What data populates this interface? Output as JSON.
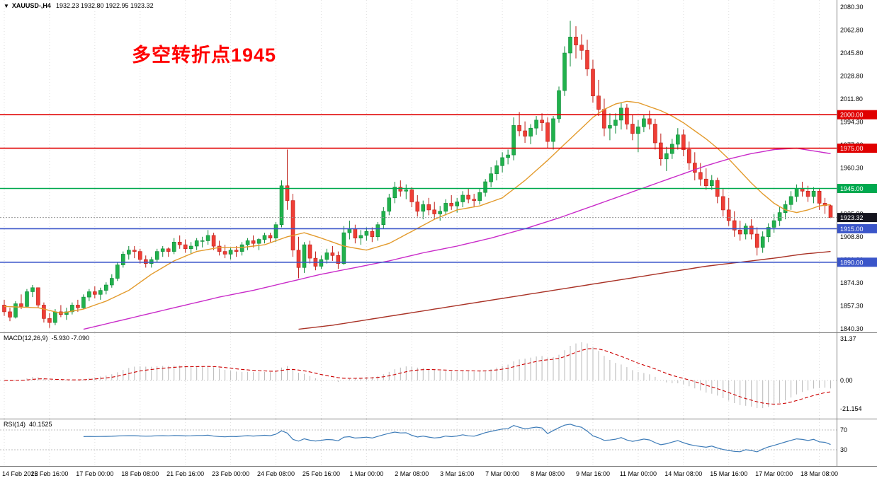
{
  "header": {
    "collapse_icon": "▼",
    "symbol_period": "XAUUSD-,H4",
    "ohlc": "1932.23 1932.80 1922.95 1923.32"
  },
  "annotation": {
    "text": "多空转折点1945",
    "color": "#FF0000"
  },
  "colors": {
    "background": "#FFFFFF",
    "up": "#21B14C",
    "up_stroke": "#0E8A39",
    "down": "#EF3E36",
    "down_stroke": "#BE1E17",
    "ma_fast": "#E39B2D",
    "ma_mid": "#C92BC9",
    "ma_slow": "#A93226",
    "macd_hist": "#B8B8B8",
    "macd_signal": "#CC0000",
    "rsi_line": "#3E7CB8",
    "grid": "#DEDEDE",
    "axis_text": "#000000",
    "separator": "#808080",
    "bid_line": "#999999",
    "bid_badge": "#15151F"
  },
  "chart_data": {
    "type": "candlestick",
    "symbol": "XAUUSD-",
    "timeframe": "H4",
    "title": "XAUUSD-,H4",
    "ohlc_display": [
      1932.23,
      1932.8,
      1922.95,
      1923.32
    ],
    "y_axis": {
      "min": 1840.3,
      "max": 2080.3,
      "labels": [
        "2080.30",
        "2062.80",
        "2045.80",
        "2028.80",
        "2011.80",
        "1994.30",
        "1977.30",
        "1960.30",
        "1943.30",
        "1925.80",
        "1908.80",
        "1891.30",
        "1874.30",
        "1857.30",
        "1840.30"
      ]
    },
    "x_label_step": 8,
    "x_labels": [
      "14 Feb 2022",
      "15 Feb 16:00",
      "17 Feb 00:00",
      "18 Feb 08:00",
      "21 Feb 16:00",
      "23 Feb 00:00",
      "24 Feb 08:00",
      "25 Feb 16:00",
      "1 Mar 00:00",
      "2 Mar 08:00",
      "3 Mar 16:00",
      "7 Mar 00:00",
      "8 Mar 08:00",
      "9 Mar 16:00",
      "11 Mar 00:00",
      "14 Mar 08:00",
      "15 Mar 16:00",
      "17 Mar 00:00",
      "18 Mar 08:00"
    ],
    "candles": [
      [
        1858,
        1862,
        1850,
        1853
      ],
      [
        1853,
        1856,
        1846,
        1849
      ],
      [
        1849,
        1861,
        1848,
        1859
      ],
      [
        1859,
        1866,
        1855,
        1857
      ],
      [
        1857,
        1870,
        1856,
        1868
      ],
      [
        1868,
        1873,
        1864,
        1871
      ],
      [
        1871,
        1871,
        1856,
        1858
      ],
      [
        1858,
        1860,
        1845,
        1848
      ],
      [
        1848,
        1852,
        1841,
        1845
      ],
      [
        1845,
        1855,
        1843,
        1853
      ],
      [
        1853,
        1858,
        1849,
        1851
      ],
      [
        1851,
        1856,
        1847,
        1853
      ],
      [
        1853,
        1860,
        1851,
        1858
      ],
      [
        1858,
        1862,
        1853,
        1856
      ],
      [
        1856,
        1866,
        1855,
        1864
      ],
      [
        1864,
        1870,
        1861,
        1868
      ],
      [
        1868,
        1872,
        1863,
        1866
      ],
      [
        1866,
        1871,
        1862,
        1869
      ],
      [
        1869,
        1875,
        1866,
        1873
      ],
      [
        1873,
        1881,
        1871,
        1878
      ],
      [
        1878,
        1890,
        1876,
        1888
      ],
      [
        1888,
        1898,
        1886,
        1896
      ],
      [
        1896,
        1902,
        1892,
        1899
      ],
      [
        1899,
        1902,
        1893,
        1898
      ],
      [
        1898,
        1900,
        1889,
        1892
      ],
      [
        1892,
        1895,
        1886,
        1889
      ],
      [
        1889,
        1894,
        1886,
        1892
      ],
      [
        1892,
        1900,
        1890,
        1898
      ],
      [
        1898,
        1902,
        1894,
        1900
      ],
      [
        1900,
        1901,
        1894,
        1898
      ],
      [
        1898,
        1908,
        1896,
        1905
      ],
      [
        1905,
        1910,
        1900,
        1903
      ],
      [
        1903,
        1907,
        1897,
        1900
      ],
      [
        1900,
        1905,
        1896,
        1902
      ],
      [
        1902,
        1908,
        1899,
        1906
      ],
      [
        1906,
        1909,
        1901,
        1906
      ],
      [
        1906,
        1914,
        1903,
        1910
      ],
      [
        1910,
        1912,
        1899,
        1902
      ],
      [
        1902,
        1906,
        1895,
        1898
      ],
      [
        1898,
        1903,
        1893,
        1896
      ],
      [
        1896,
        1901,
        1892,
        1899
      ],
      [
        1899,
        1902,
        1894,
        1898
      ],
      [
        1898,
        1905,
        1895,
        1903
      ],
      [
        1903,
        1908,
        1899,
        1906
      ],
      [
        1906,
        1910,
        1901,
        1904
      ],
      [
        1904,
        1908,
        1899,
        1907
      ],
      [
        1907,
        1912,
        1904,
        1910
      ],
      [
        1910,
        1912,
        1905,
        1908
      ],
      [
        1908,
        1920,
        1905,
        1918
      ],
      [
        1918,
        1951,
        1916,
        1947
      ],
      [
        1947,
        1974,
        1929,
        1936
      ],
      [
        1936,
        1941,
        1894,
        1899
      ],
      [
        1899,
        1909,
        1878,
        1886
      ],
      [
        1886,
        1905,
        1882,
        1903
      ],
      [
        1903,
        1906,
        1889,
        1893
      ],
      [
        1893,
        1898,
        1884,
        1887
      ],
      [
        1887,
        1895,
        1885,
        1892
      ],
      [
        1892,
        1900,
        1889,
        1897
      ],
      [
        1897,
        1902,
        1891,
        1895
      ],
      [
        1895,
        1898,
        1885,
        1889
      ],
      [
        1889,
        1917,
        1888,
        1912
      ],
      [
        1912,
        1921,
        1907,
        1915
      ],
      [
        1915,
        1918,
        1904,
        1908
      ],
      [
        1908,
        1914,
        1903,
        1910
      ],
      [
        1910,
        1916,
        1906,
        1913
      ],
      [
        1913,
        1916,
        1905,
        1909
      ],
      [
        1909,
        1920,
        1906,
        1918
      ],
      [
        1918,
        1931,
        1915,
        1928
      ],
      [
        1928,
        1941,
        1925,
        1938
      ],
      [
        1938,
        1950,
        1934,
        1946
      ],
      [
        1946,
        1951,
        1939,
        1943
      ],
      [
        1943,
        1948,
        1937,
        1944
      ],
      [
        1944,
        1946,
        1931,
        1935
      ],
      [
        1935,
        1940,
        1924,
        1928
      ],
      [
        1928,
        1936,
        1922,
        1933
      ],
      [
        1933,
        1938,
        1925,
        1929
      ],
      [
        1929,
        1935,
        1922,
        1926
      ],
      [
        1926,
        1932,
        1921,
        1928
      ],
      [
        1928,
        1937,
        1925,
        1934
      ],
      [
        1934,
        1940,
        1929,
        1932
      ],
      [
        1932,
        1938,
        1927,
        1935
      ],
      [
        1935,
        1943,
        1931,
        1940
      ],
      [
        1940,
        1945,
        1934,
        1937
      ],
      [
        1937,
        1941,
        1931,
        1936
      ],
      [
        1936,
        1945,
        1933,
        1942
      ],
      [
        1942,
        1952,
        1939,
        1950
      ],
      [
        1950,
        1961,
        1946,
        1956
      ],
      [
        1956,
        1966,
        1951,
        1962
      ],
      [
        1962,
        1972,
        1957,
        1968
      ],
      [
        1968,
        1974,
        1963,
        1970
      ],
      [
        1970,
        1998,
        1966,
        1992
      ],
      [
        1992,
        2002,
        1984,
        1988
      ],
      [
        1988,
        1995,
        1979,
        1984
      ],
      [
        1984,
        1993,
        1978,
        1990
      ],
      [
        1990,
        1999,
        1985,
        1996
      ],
      [
        1996,
        2001,
        1988,
        1994
      ],
      [
        1994,
        1998,
        1975,
        1980
      ],
      [
        1980,
        1999,
        1974,
        1997
      ],
      [
        1997,
        2021,
        1994,
        2018
      ],
      [
        2018,
        2051,
        2014,
        2046
      ],
      [
        2046,
        2070,
        2036,
        2058
      ],
      [
        2058,
        2066,
        2042,
        2052
      ],
      [
        2052,
        2060,
        2041,
        2048
      ],
      [
        2048,
        2056,
        2029,
        2034
      ],
      [
        2034,
        2041,
        2009,
        2014
      ],
      [
        2014,
        2026,
        1999,
        2004
      ],
      [
        2004,
        2012,
        1984,
        1990
      ],
      [
        1990,
        2001,
        1981,
        1992
      ],
      [
        1992,
        2001,
        1986,
        1996
      ],
      [
        1996,
        2009,
        1989,
        2005
      ],
      [
        2005,
        2008,
        1989,
        1993
      ],
      [
        1993,
        2000,
        1981,
        1986
      ],
      [
        1986,
        1996,
        1972,
        1991
      ],
      [
        1991,
        2000,
        1987,
        1997
      ],
      [
        1997,
        2003,
        1989,
        1993
      ],
      [
        1993,
        1997,
        1974,
        1979
      ],
      [
        1979,
        1986,
        1962,
        1967
      ],
      [
        1967,
        1976,
        1958,
        1971
      ],
      [
        1971,
        1982,
        1967,
        1978
      ],
      [
        1978,
        1990,
        1974,
        1985
      ],
      [
        1985,
        1989,
        1969,
        1974
      ],
      [
        1974,
        1980,
        1959,
        1964
      ],
      [
        1964,
        1972,
        1951,
        1957
      ],
      [
        1957,
        1964,
        1947,
        1952
      ],
      [
        1952,
        1960,
        1944,
        1947
      ],
      [
        1947,
        1955,
        1944,
        1951
      ],
      [
        1951,
        1953,
        1934,
        1939
      ],
      [
        1939,
        1945,
        1924,
        1929
      ],
      [
        1929,
        1938,
        1917,
        1921
      ],
      [
        1921,
        1928,
        1909,
        1914
      ],
      [
        1914,
        1921,
        1906,
        1911
      ],
      [
        1911,
        1919,
        1907,
        1917
      ],
      [
        1917,
        1922,
        1907,
        1911
      ],
      [
        1911,
        1916,
        1895,
        1901
      ],
      [
        1901,
        1913,
        1897,
        1909
      ],
      [
        1909,
        1919,
        1905,
        1916
      ],
      [
        1916,
        1926,
        1912,
        1921
      ],
      [
        1921,
        1931,
        1917,
        1927
      ],
      [
        1927,
        1936,
        1922,
        1933
      ],
      [
        1933,
        1943,
        1929,
        1939
      ],
      [
        1939,
        1948,
        1935,
        1945
      ],
      [
        1945,
        1950,
        1939,
        1943
      ],
      [
        1943,
        1947,
        1935,
        1939
      ],
      [
        1939,
        1946,
        1934,
        1943
      ],
      [
        1943,
        1945,
        1929,
        1934
      ],
      [
        1934,
        1938,
        1926,
        1932.2
      ],
      [
        1932.2,
        1932.8,
        1922.9,
        1923.3
      ]
    ],
    "horizontal_lines": [
      {
        "price": 2000.0,
        "label": "2000.00",
        "color": "#E00000"
      },
      {
        "price": 1975.0,
        "label": "1975.00",
        "color": "#E00000"
      },
      {
        "price": 1945.0,
        "label": "1945.00",
        "color": "#00A94F"
      },
      {
        "price": 1915.0,
        "label": "1915.00",
        "color": "#3A55C9"
      },
      {
        "price": 1890.0,
        "label": "1890.00",
        "color": "#3A55C9"
      }
    ],
    "current_price": {
      "value": 1923.32,
      "label": "1923.32"
    },
    "moving_averages": [
      {
        "name": "ma-fast",
        "color": "#E39B2D",
        "points": [
          [
            0,
            1857
          ],
          [
            6,
            1856
          ],
          [
            10,
            1852
          ],
          [
            14,
            1855
          ],
          [
            18,
            1861
          ],
          [
            22,
            1869
          ],
          [
            26,
            1881
          ],
          [
            30,
            1891
          ],
          [
            34,
            1898
          ],
          [
            38,
            1901
          ],
          [
            42,
            1901
          ],
          [
            46,
            1903
          ],
          [
            50,
            1909
          ],
          [
            53,
            1912
          ],
          [
            56,
            1908
          ],
          [
            60,
            1902
          ],
          [
            64,
            1899
          ],
          [
            68,
            1904
          ],
          [
            72,
            1913
          ],
          [
            76,
            1922
          ],
          [
            80,
            1929
          ],
          [
            84,
            1932
          ],
          [
            88,
            1938
          ],
          [
            92,
            1951
          ],
          [
            96,
            1966
          ],
          [
            100,
            1982
          ],
          [
            102,
            1990
          ],
          [
            104,
            1998
          ],
          [
            106,
            2004
          ],
          [
            108,
            2008
          ],
          [
            110,
            2010
          ],
          [
            112,
            2009
          ],
          [
            114,
            2006
          ],
          [
            116,
            2003
          ],
          [
            118,
            1999
          ],
          [
            120,
            1994
          ],
          [
            122,
            1988
          ],
          [
            124,
            1982
          ],
          [
            126,
            1975
          ],
          [
            128,
            1967
          ],
          [
            130,
            1958
          ],
          [
            132,
            1949
          ],
          [
            134,
            1941
          ],
          [
            136,
            1934
          ],
          [
            138,
            1929
          ],
          [
            140,
            1927
          ],
          [
            142,
            1929
          ],
          [
            144,
            1932
          ],
          [
            146,
            1933
          ]
        ]
      },
      {
        "name": "ma-mid",
        "color": "#C92BC9",
        "points": [
          [
            14,
            1840
          ],
          [
            20,
            1846
          ],
          [
            26,
            1852
          ],
          [
            32,
            1858
          ],
          [
            38,
            1864
          ],
          [
            44,
            1869
          ],
          [
            50,
            1875
          ],
          [
            56,
            1881
          ],
          [
            62,
            1886
          ],
          [
            68,
            1891
          ],
          [
            74,
            1897
          ],
          [
            80,
            1902
          ],
          [
            86,
            1908
          ],
          [
            92,
            1915
          ],
          [
            98,
            1923
          ],
          [
            104,
            1932
          ],
          [
            110,
            1941
          ],
          [
            116,
            1950
          ],
          [
            120,
            1956
          ],
          [
            124,
            1962
          ],
          [
            128,
            1967
          ],
          [
            132,
            1971
          ],
          [
            136,
            1974
          ],
          [
            140,
            1975
          ],
          [
            146,
            1971
          ]
        ]
      },
      {
        "name": "ma-slow",
        "color": "#A93226",
        "points": [
          [
            52,
            1840
          ],
          [
            58,
            1843
          ],
          [
            64,
            1847
          ],
          [
            70,
            1851
          ],
          [
            76,
            1855
          ],
          [
            82,
            1859
          ],
          [
            88,
            1863
          ],
          [
            94,
            1867
          ],
          [
            100,
            1871
          ],
          [
            106,
            1875
          ],
          [
            112,
            1879
          ],
          [
            118,
            1883
          ],
          [
            124,
            1887
          ],
          [
            130,
            1890
          ],
          [
            136,
            1893
          ],
          [
            141,
            1896
          ],
          [
            146,
            1898
          ]
        ]
      }
    ],
    "macd": {
      "label": "MACD(12,26,9)",
      "values": "-5.930 -7.090",
      "params": [
        12,
        26,
        9
      ],
      "axis_labels": [
        "31.37",
        "0.00",
        "-21.154"
      ]
    },
    "rsi": {
      "label": "RSI(14)",
      "value": "40.1525",
      "period": 14,
      "levels": [
        70,
        30
      ],
      "axis_labels": [
        "70",
        "30"
      ]
    }
  }
}
